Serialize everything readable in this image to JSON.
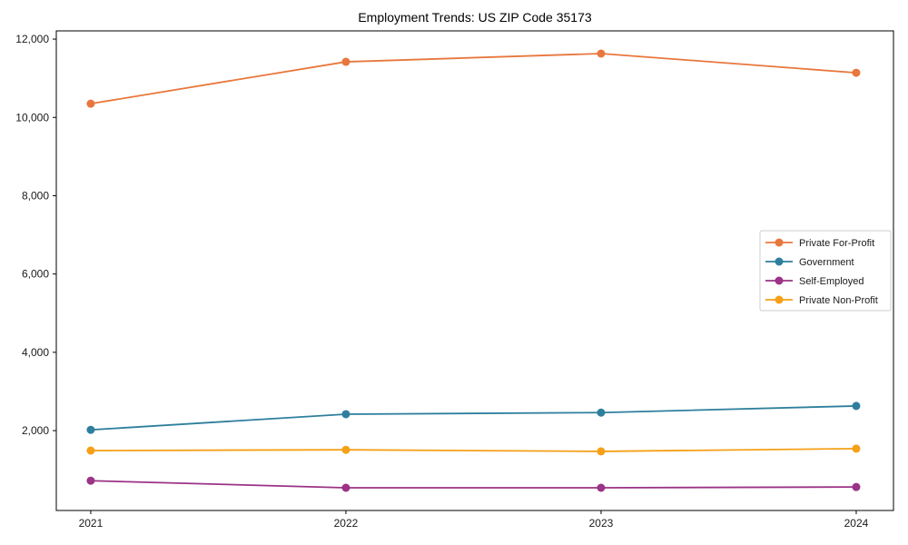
{
  "chart_data": {
    "type": "line",
    "title": "Employment Trends: US ZIP Code 35173",
    "x": [
      2021,
      2022,
      2023,
      2024
    ],
    "x_tick_labels": [
      "2021",
      "2022",
      "2023",
      "2024"
    ],
    "y_ticks": [
      2000,
      4000,
      6000,
      8000,
      10000,
      12000
    ],
    "y_tick_labels": [
      "2,000",
      "4,000",
      "6,000",
      "8,000",
      "10,000",
      "12,000"
    ],
    "xlim": [
      2020.865,
      2024.146
    ],
    "ylim": [
      -40,
      12210
    ],
    "grid": false,
    "legend_position": "center-right",
    "series": [
      {
        "name": "Private For-Profit",
        "color": "#E8773C",
        "values": [
          10350,
          11420,
          11630,
          11140
        ]
      },
      {
        "name": "Government",
        "color": "#2E7F9D",
        "values": [
          2020,
          2420,
          2460,
          2630
        ]
      },
      {
        "name": "Self-Employed",
        "color": "#9B3386",
        "values": [
          720,
          540,
          540,
          560
        ]
      },
      {
        "name": "Private Non-Profit",
        "color": "#F5A017",
        "values": [
          1490,
          1510,
          1470,
          1540
        ]
      }
    ],
    "frame_color": "#000000",
    "legend_border_color": "#cccccc"
  }
}
